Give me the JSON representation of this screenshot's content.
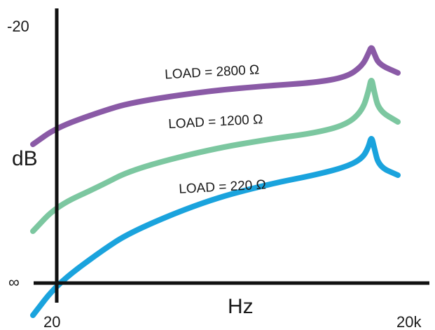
{
  "chart_data": {
    "type": "line",
    "title": "",
    "xlabel": "Hz",
    "ylabel": "dB",
    "x_ticks": [
      "20",
      "20k"
    ],
    "y_ticks": [
      "-20",
      "∞"
    ],
    "x_scale": "log",
    "x": [
      12,
      20,
      50,
      100,
      500,
      2000,
      5000,
      10000,
      14000,
      16000,
      17000,
      18000,
      20000,
      30000
    ],
    "series": [
      {
        "name": "LOAD = 2800 Ω",
        "label": "LOAD = 2800 Ω",
        "color": "#8a5aa6",
        "values": [
          0.22,
          0.34,
          0.45,
          0.52,
          0.6,
          0.64,
          0.66,
          0.7,
          0.78,
          0.87,
          0.92,
          0.87,
          0.79,
          0.73
        ]
      },
      {
        "name": "LOAD = 1200 Ω",
        "label": "LOAD = 1200 Ω",
        "color": "#7cc7a0",
        "values": [
          -0.4,
          -0.22,
          -0.08,
          0.04,
          0.18,
          0.26,
          0.3,
          0.36,
          0.46,
          0.6,
          0.7,
          0.6,
          0.46,
          0.38
        ]
      },
      {
        "name": "LOAD = 220 Ω",
        "label": "LOAD = 220 Ω",
        "color": "#1aa3dd",
        "values": [
          -1.0,
          -0.78,
          -0.55,
          -0.4,
          -0.18,
          -0.06,
          0.0,
          0.06,
          0.12,
          0.2,
          0.28,
          0.2,
          0.06,
          0.0
        ]
      }
    ],
    "grid": false,
    "legend": "none"
  }
}
